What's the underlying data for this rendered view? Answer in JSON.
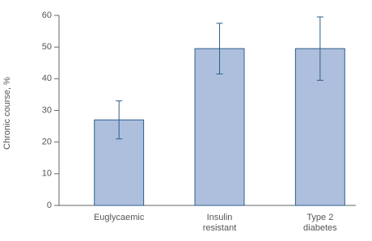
{
  "chart_data": {
    "type": "bar",
    "y_label": "Chronic course, %",
    "categories": [
      "Euglycaemic",
      "Insulin\nresistant",
      "Type 2\ndiabetes"
    ],
    "values": [
      27,
      49.5,
      49.5
    ],
    "errors": [
      6,
      8,
      10
    ],
    "color": "#aebfdd",
    "edge_color": "#2a5f8c",
    "ylim": [
      0,
      60
    ],
    "yticks": [
      0,
      10,
      20,
      30,
      40,
      50,
      60
    ]
  }
}
